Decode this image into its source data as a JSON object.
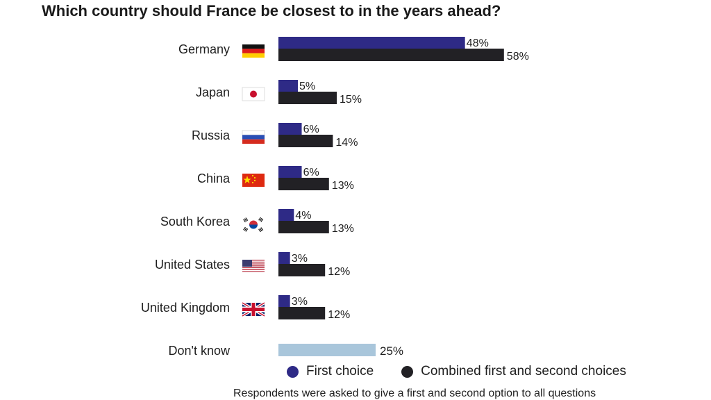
{
  "chart_data": {
    "type": "bar",
    "title": "Which country should France be closest to in the years ahead?",
    "categories": [
      "Germany",
      "Japan",
      "Russia",
      "China",
      "South Korea",
      "United States",
      "United Kingdom",
      "Don't know"
    ],
    "flag_icons": [
      "germany-flag-icon",
      "japan-flag-icon",
      "russia-flag-icon",
      "china-flag-icon",
      "south-korea-flag-icon",
      "usa-flag-icon",
      "uk-flag-icon",
      null
    ],
    "series": [
      {
        "name": "First choice",
        "color": "#2e2a86",
        "values": [
          48,
          5,
          6,
          6,
          4,
          3,
          3,
          null
        ],
        "labels": [
          "48%",
          "5%",
          "6%",
          "6%",
          "4%",
          "3%",
          "3%",
          ""
        ]
      },
      {
        "name": "Combined first and second choices",
        "color": "#222125",
        "values": [
          58,
          15,
          14,
          13,
          13,
          12,
          12,
          null
        ],
        "labels": [
          "58%",
          "15%",
          "14%",
          "13%",
          "13%",
          "12%",
          "12%",
          ""
        ]
      }
    ],
    "dont_know": {
      "value": 25,
      "label": "25%",
      "color": "#a9c6db"
    },
    "xlim": [
      0,
      60
    ],
    "grid": false,
    "legend_position": "bottom",
    "footnote": "Respondents were asked to give a first and second option to all questions"
  }
}
